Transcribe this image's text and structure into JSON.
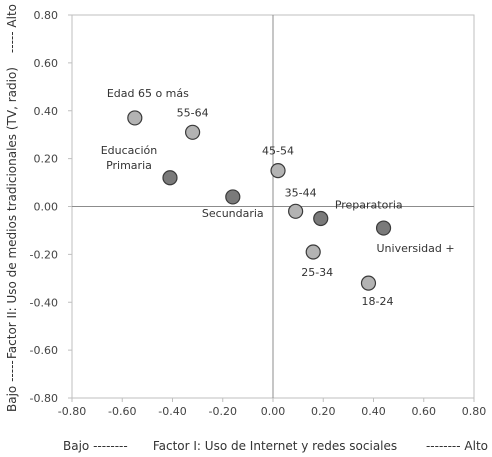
{
  "chart_data": {
    "type": "scatter",
    "xlabel": "Factor I: Uso de Internet y redes sociales",
    "xlabel_low": "Bajo --------",
    "xlabel_high": "-------- Alto",
    "ylabel": "Factor II: Uso de medios tradicionales (TV, radio)",
    "ylabel_low": "Bajo -----",
    "ylabel_high": "----- Alto",
    "xlim": [
      -0.8,
      0.8
    ],
    "ylim": [
      -0.8,
      0.8
    ],
    "xticks": [
      "-0.80",
      "-0.60",
      "-0.40",
      "-0.20",
      "0.00",
      "0.20",
      "0.40",
      "0.60",
      "0.80"
    ],
    "yticks": [
      "0.80",
      "0.60",
      "0.40",
      "0.20",
      "0.00",
      "-0.20",
      "-0.40",
      "-0.60",
      "-0.80"
    ],
    "grid": false,
    "series": [
      {
        "group": "age",
        "color": "#b3b3b3",
        "points": [
          {
            "label": "Edad 65 o más",
            "x": -0.55,
            "y": 0.37
          },
          {
            "label": "55-64",
            "x": -0.32,
            "y": 0.31
          },
          {
            "label": "45-54",
            "x": 0.02,
            "y": 0.15
          },
          {
            "label": "35-44",
            "x": 0.09,
            "y": -0.02
          },
          {
            "label": "25-34",
            "x": 0.16,
            "y": -0.19
          },
          {
            "label": "18-24",
            "x": 0.38,
            "y": -0.32
          }
        ]
      },
      {
        "group": "education",
        "color": "#7a7a7a",
        "points": [
          {
            "label": "Educación Primaria",
            "label_lines": [
              "Educación",
              "Primaria"
            ],
            "x": -0.41,
            "y": 0.12
          },
          {
            "label": "Secundaria",
            "x": -0.16,
            "y": 0.04
          },
          {
            "label": "Preparatoria",
            "x": 0.19,
            "y": -0.05
          },
          {
            "label": "Universidad +",
            "x": 0.44,
            "y": -0.09
          }
        ]
      }
    ]
  }
}
